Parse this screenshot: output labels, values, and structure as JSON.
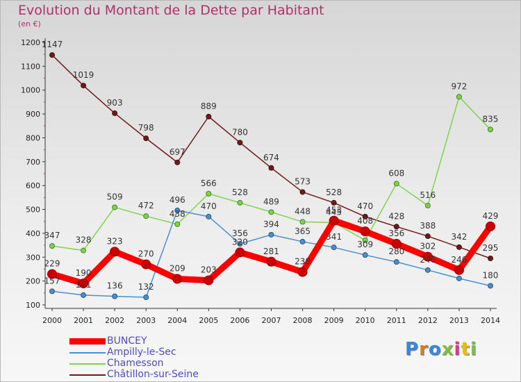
{
  "title": "Evolution du Montant de la Dette par Habitant",
  "subtitle": "(en €)",
  "brand": "Proxiti",
  "chart_data": {
    "type": "line",
    "x": [
      "2000",
      "2001",
      "2002",
      "2003",
      "2004",
      "2005",
      "2006",
      "2007",
      "2008",
      "2009",
      "2010",
      "2011",
      "2012",
      "2013",
      "2014"
    ],
    "ylim": [
      100,
      1200
    ],
    "yticks": [
      "100",
      "200",
      "300",
      "400",
      "500",
      "600",
      "700",
      "800",
      "900",
      "1000",
      "1100",
      "1200"
    ],
    "grid": false,
    "legend_position": "bottom-left",
    "series": [
      {
        "name": "Châtillon-sur-Seine",
        "color": "#6e1a1a",
        "values": [
          1147,
          1019,
          903,
          798,
          697,
          889,
          780,
          674,
          573,
          528,
          470,
          428,
          388,
          342,
          295
        ]
      },
      {
        "name": "Chamesson",
        "color": "#7dd44a",
        "values": [
          347,
          328,
          509,
          472,
          438,
          566,
          528,
          489,
          448,
          445,
          371,
          608,
          516,
          972,
          835
        ]
      },
      {
        "name": "Ampilly-le-Sec",
        "color": "#4a8fd0",
        "values": [
          157,
          141,
          136,
          132,
          496,
          470,
          356,
          394,
          365,
          341,
          309,
          280,
          246,
          211,
          180
        ]
      },
      {
        "name": "BUNCEY",
        "color": "#ff0000",
        "values": [
          229,
          190,
          323,
          270,
          209,
          203,
          320,
          281,
          238,
          453,
          408,
          356,
          302,
          246,
          429
        ]
      }
    ],
    "labels": {
      "Châtillon-sur-Seine": [
        "1147",
        "1019",
        "903",
        "798",
        "697",
        "889",
        "780",
        "674",
        "573",
        "528",
        "470",
        "428",
        "388",
        "342",
        "295"
      ],
      "Chamesson": [
        "347",
        "328",
        "509",
        "472",
        "438",
        "566",
        "528",
        "489",
        "448",
        "445",
        "",
        "608",
        "516",
        "972",
        "835"
      ],
      "Ampilly-le-Sec": [
        "157",
        "141",
        "136",
        "132",
        "496",
        "470",
        "356",
        "394",
        "365",
        "341",
        "309",
        "280",
        "246",
        "",
        "180"
      ],
      "BUNCEY": [
        "229",
        "190",
        "323",
        "270",
        "209",
        "203",
        "320",
        "281",
        "238",
        "453",
        "408",
        "356",
        "302",
        "246",
        "429"
      ]
    },
    "legend_order": [
      "BUNCEY",
      "Ampilly-le-Sec",
      "Chamesson",
      "Châtillon-sur-Seine"
    ]
  }
}
